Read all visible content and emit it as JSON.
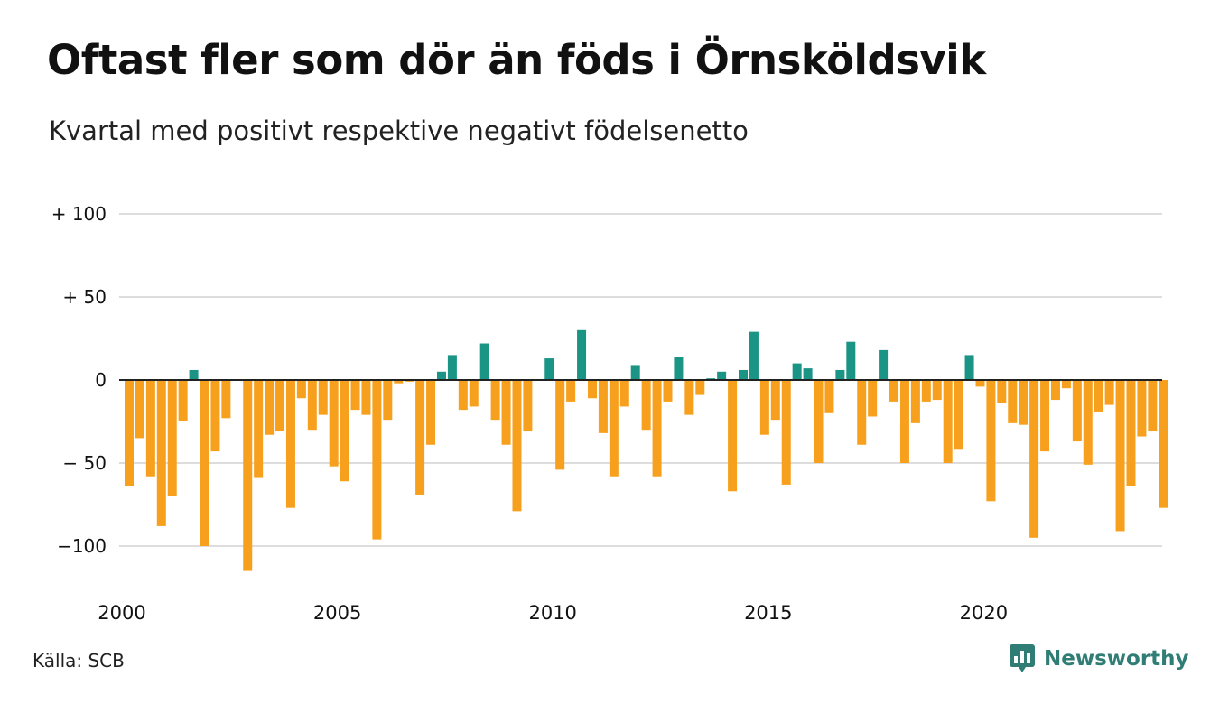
{
  "title": "Oftast fler som dör än föds i Örnsköldsvik",
  "subtitle": "Kvartal med positivt respektive negativt födelsenetto",
  "source": "Källa: SCB",
  "brand": {
    "name": "Newsworthy",
    "icon": "newsworthy-logo-icon"
  },
  "colors": {
    "positive": "#1a9485",
    "negative": "#f7a01d",
    "grid": "#dddddd",
    "zero": "#222222",
    "brand": "#2f7d74"
  },
  "chart_data": {
    "type": "bar",
    "start": "2000Q1",
    "frequency": "quarterly",
    "ylim": [
      -115,
      100
    ],
    "y_ticks": [
      {
        "value": 100,
        "label": "+ 100"
      },
      {
        "value": 50,
        "label": "+  50"
      },
      {
        "value": 0,
        "label": "0"
      },
      {
        "value": -50,
        "label": "− 50"
      },
      {
        "value": -100,
        "label": "−100"
      }
    ],
    "x_tick_labels": [
      "2000",
      "2005",
      "2010",
      "2015",
      "2020"
    ],
    "values": [
      -64,
      -35,
      -58,
      -88,
      -70,
      -25,
      6,
      -100,
      -43,
      -23,
      null,
      -115,
      -59,
      -33,
      -31,
      -77,
      -11,
      -30,
      -21,
      -52,
      -61,
      -18,
      -21,
      -96,
      -24,
      -2,
      -1,
      -69,
      -39,
      5,
      15,
      -18,
      -16,
      22,
      -24,
      -39,
      -79,
      -31,
      null,
      13,
      -54,
      -13,
      30,
      -11,
      -32,
      -58,
      -16,
      9,
      -30,
      -58,
      -13,
      14,
      -21,
      -9,
      1,
      5,
      -67,
      6,
      29,
      -33,
      -24,
      -63,
      10,
      7,
      -50,
      -20,
      6,
      23,
      -39,
      -22,
      18,
      -13,
      -50,
      -26,
      -13,
      -12,
      -50,
      -42,
      15,
      -4,
      -73,
      -14,
      -26,
      -27,
      -95,
      -43,
      -12,
      -5,
      -37,
      -51,
      -19,
      -15,
      -91,
      -64,
      -34,
      -31,
      -77
    ]
  }
}
